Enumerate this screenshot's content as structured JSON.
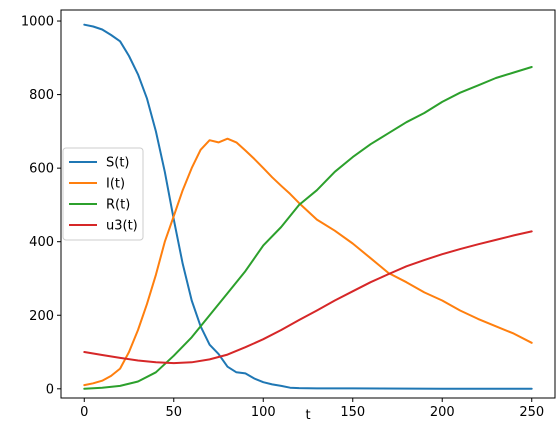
{
  "chart_data": {
    "type": "line",
    "title": "",
    "xlabel": "t",
    "ylabel": "",
    "xlim": [
      -13,
      263
    ],
    "ylim": [
      -25,
      1030
    ],
    "xticks": [
      0,
      50,
      100,
      150,
      200,
      250
    ],
    "yticks": [
      0,
      200,
      400,
      600,
      800,
      1000
    ],
    "grid": false,
    "legend_position": "center-left",
    "series": [
      {
        "name": "S(t)",
        "color": "#1f77b4",
        "points": [
          [
            0,
            990
          ],
          [
            5,
            985
          ],
          [
            10,
            977
          ],
          [
            15,
            962
          ],
          [
            20,
            945
          ],
          [
            25,
            905
          ],
          [
            30,
            855
          ],
          [
            35,
            790
          ],
          [
            40,
            700
          ],
          [
            45,
            590
          ],
          [
            50,
            460
          ],
          [
            55,
            340
          ],
          [
            60,
            240
          ],
          [
            65,
            170
          ],
          [
            70,
            120
          ],
          [
            75,
            95
          ],
          [
            80,
            60
          ],
          [
            85,
            45
          ],
          [
            90,
            42
          ],
          [
            95,
            28
          ],
          [
            100,
            18
          ],
          [
            105,
            12
          ],
          [
            110,
            8
          ],
          [
            115,
            3
          ],
          [
            120,
            2
          ],
          [
            130,
            1
          ],
          [
            150,
            1
          ],
          [
            200,
            0
          ],
          [
            250,
            0
          ]
        ]
      },
      {
        "name": "I(t)",
        "color": "#ff7f0e",
        "points": [
          [
            0,
            10
          ],
          [
            5,
            15
          ],
          [
            10,
            22
          ],
          [
            15,
            35
          ],
          [
            20,
            55
          ],
          [
            25,
            100
          ],
          [
            30,
            160
          ],
          [
            35,
            230
          ],
          [
            40,
            310
          ],
          [
            45,
            400
          ],
          [
            50,
            470
          ],
          [
            55,
            540
          ],
          [
            60,
            600
          ],
          [
            65,
            650
          ],
          [
            70,
            676
          ],
          [
            75,
            670
          ],
          [
            80,
            680
          ],
          [
            85,
            670
          ],
          [
            90,
            648
          ],
          [
            95,
            625
          ],
          [
            100,
            600
          ],
          [
            105,
            575
          ],
          [
            110,
            552
          ],
          [
            115,
            530
          ],
          [
            120,
            505
          ],
          [
            130,
            460
          ],
          [
            140,
            430
          ],
          [
            150,
            395
          ],
          [
            160,
            355
          ],
          [
            170,
            315
          ],
          [
            180,
            290
          ],
          [
            190,
            262
          ],
          [
            200,
            240
          ],
          [
            210,
            213
          ],
          [
            220,
            190
          ],
          [
            230,
            170
          ],
          [
            240,
            150
          ],
          [
            250,
            125
          ]
        ]
      },
      {
        "name": "R(t)",
        "color": "#2ca02c",
        "points": [
          [
            0,
            0
          ],
          [
            10,
            3
          ],
          [
            20,
            8
          ],
          [
            30,
            20
          ],
          [
            40,
            45
          ],
          [
            50,
            90
          ],
          [
            60,
            140
          ],
          [
            70,
            200
          ],
          [
            80,
            260
          ],
          [
            90,
            320
          ],
          [
            100,
            390
          ],
          [
            110,
            440
          ],
          [
            120,
            500
          ],
          [
            130,
            540
          ],
          [
            140,
            590
          ],
          [
            150,
            630
          ],
          [
            160,
            665
          ],
          [
            170,
            695
          ],
          [
            180,
            725
          ],
          [
            190,
            750
          ],
          [
            200,
            780
          ],
          [
            210,
            805
          ],
          [
            220,
            825
          ],
          [
            230,
            845
          ],
          [
            240,
            860
          ],
          [
            250,
            875
          ]
        ]
      },
      {
        "name": "u3(t)",
        "color": "#d62728",
        "points": [
          [
            0,
            100
          ],
          [
            10,
            92
          ],
          [
            20,
            84
          ],
          [
            30,
            77
          ],
          [
            40,
            72
          ],
          [
            50,
            70
          ],
          [
            60,
            72
          ],
          [
            70,
            80
          ],
          [
            80,
            93
          ],
          [
            90,
            113
          ],
          [
            100,
            135
          ],
          [
            110,
            160
          ],
          [
            120,
            187
          ],
          [
            130,
            213
          ],
          [
            140,
            240
          ],
          [
            150,
            265
          ],
          [
            160,
            290
          ],
          [
            170,
            312
          ],
          [
            180,
            333
          ],
          [
            190,
            350
          ],
          [
            200,
            366
          ],
          [
            210,
            380
          ],
          [
            220,
            393
          ],
          [
            230,
            405
          ],
          [
            240,
            417
          ],
          [
            250,
            428
          ]
        ]
      }
    ]
  }
}
